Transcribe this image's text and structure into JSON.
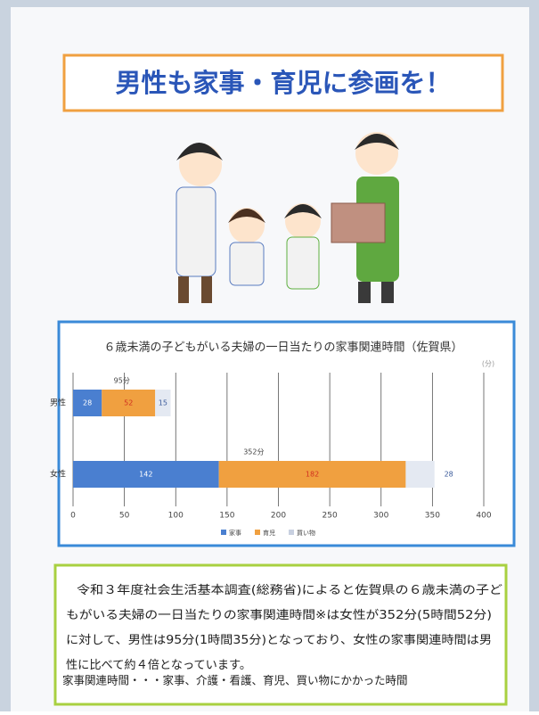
{
  "header": {
    "title": "男性も家事・育児に参画を！"
  },
  "chart_data": {
    "type": "bar",
    "orientation": "horizontal",
    "stacked": true,
    "title": "６歳未満の子どもがいる夫婦の一日当たりの家事関連時間（佐賀県）",
    "unit": "(分)",
    "categories": [
      "男性",
      "女性"
    ],
    "series": [
      {
        "name": "家事",
        "color": "#4a7fd0",
        "label_color": "#ffffff",
        "values": [
          28,
          142
        ]
      },
      {
        "name": "育児",
        "color": "#f0a040",
        "label_color": "#d03020",
        "values": [
          52,
          182
        ]
      },
      {
        "name": "買い物",
        "color": "#e4e9f2",
        "label_color": "#3a5a9a",
        "values": [
          15,
          28
        ]
      }
    ],
    "totals": {
      "values": [
        95,
        352
      ],
      "value_labels": [
        "95分",
        "352分"
      ]
    },
    "xlim": [
      0,
      400
    ],
    "xticks": [
      0,
      50,
      100,
      150,
      200,
      250,
      300,
      350,
      400
    ],
    "grid": true,
    "legend": "bottom"
  },
  "note": {
    "lines": [
      "令和３年度社会生活基本調査(総務省)によると佐賀県の６歳未満の子ど",
      "もがいる夫婦の一日当たりの家事関連時間※は女性が352分(5時間52分)",
      "に対して、男性は95分(1時間35分)となっており、女性の家事関連時間は男",
      "性に比べて約４倍となっています。"
    ],
    "definition": "家事関連時間・・・家事、介護・看護、育児、買い物にかかった時間"
  }
}
